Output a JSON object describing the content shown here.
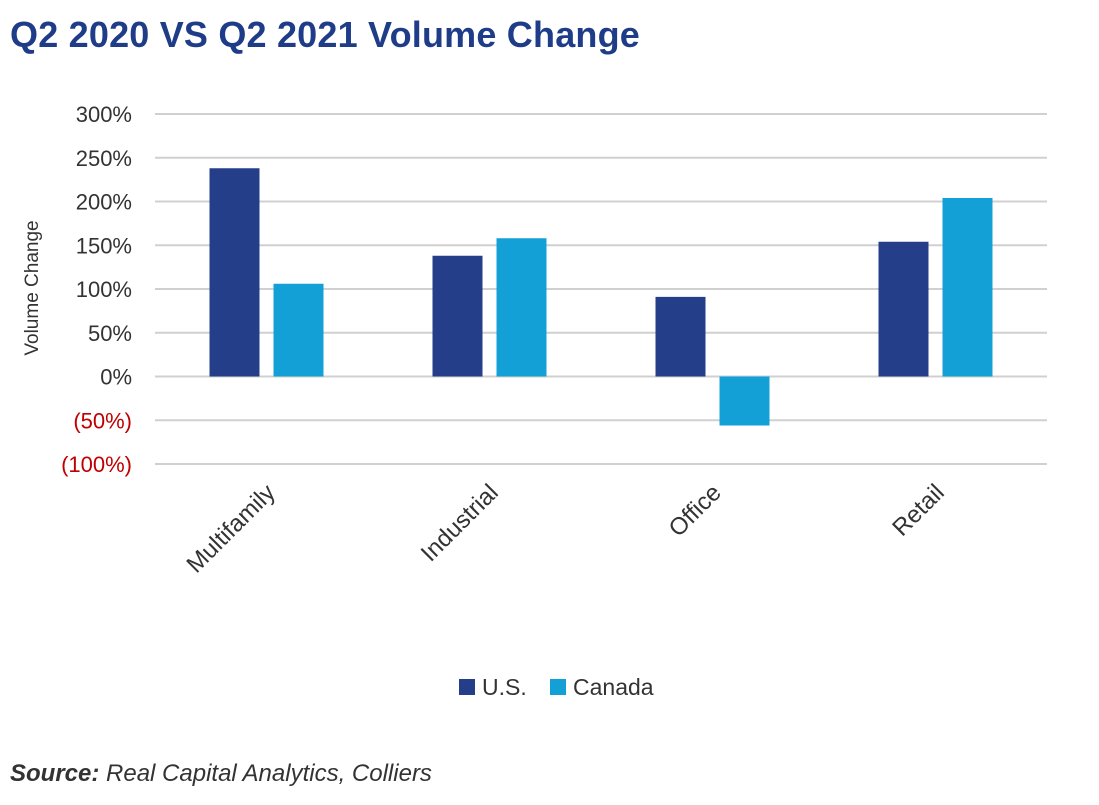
{
  "colors": {
    "title": "#1f3c88",
    "us": "#243e8a",
    "canada": "#12a0d7",
    "grid": "#d0d0d0",
    "tick": "#333333",
    "negative_tick": "#c00000"
  },
  "source": {
    "label": "Source:",
    "text": "Real Capital Analytics, Colliers"
  },
  "chart_data": {
    "type": "bar",
    "title": "Q2 2020 VS Q2 2021 Volume Change",
    "xlabel": "",
    "ylabel": "Volume Change",
    "categories": [
      "Multifamily",
      "Industrial",
      "Office",
      "Retail"
    ],
    "series": [
      {
        "name": "U.S.",
        "values": [
          238,
          138,
          91,
          154
        ]
      },
      {
        "name": "Canada",
        "values": [
          106,
          158,
          -56,
          204
        ]
      }
    ],
    "ylim": [
      -100,
      300
    ],
    "yticks": [
      300,
      250,
      200,
      150,
      100,
      50,
      0,
      -50,
      -100
    ],
    "ytick_labels": [
      "300%",
      "250%",
      "200%",
      "150%",
      "100%",
      "50%",
      "0%",
      "(50%)",
      "(100%)"
    ],
    "grid": true,
    "legend_position": "bottom"
  }
}
